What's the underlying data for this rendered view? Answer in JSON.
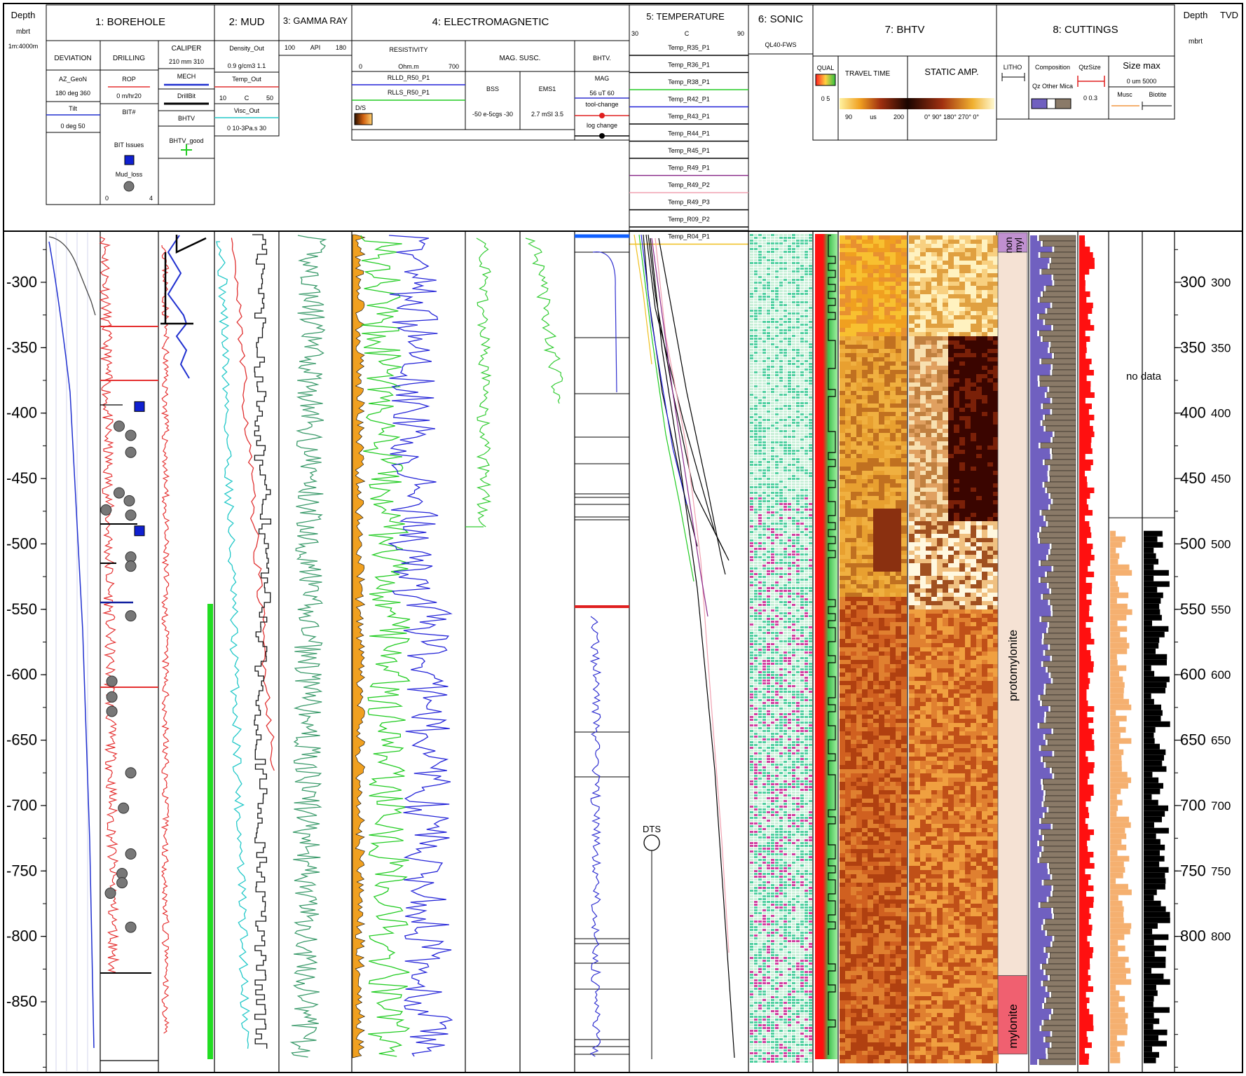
{
  "depth_header": {
    "title": "Depth",
    "unit": "mbrt",
    "scale": "1m:4000m"
  },
  "tvd_header": {
    "title": "Depth",
    "tvd": "TVD",
    "unit": "mbrt"
  },
  "tracks": {
    "borehole": {
      "title": "1: BOREHOLE",
      "deviation": {
        "title": "DEVIATION",
        "az_name": "AZ_GeoN",
        "az_scale": "180 deg 360",
        "tilt_name": "Tilt",
        "tilt_scale": "0 deg 50"
      },
      "drilling": {
        "title": "DRILLING",
        "rop_name": "ROP",
        "rop_scale": "0 m/hr20",
        "bit_name": "BIT#",
        "bit_issues": "BIT Issues",
        "mud_loss": "Mud_loss",
        "mud_scale_min": "0",
        "mud_scale_max": "4"
      },
      "caliper": {
        "title": "CALIPER",
        "scale": "210 mm 310",
        "mech": "MECH",
        "drillbit": "DrillBit",
        "bhtv": "BHTV",
        "bhtv_good": "BHTV_good"
      }
    },
    "mud": {
      "title": "2: MUD",
      "density": "Density_Out",
      "density_scale": "0.9 g/cm3 1.1",
      "temp": "Temp_Out",
      "temp_scale_min": "10",
      "temp_scale_unit": "C",
      "temp_scale_max": "50",
      "visc": "Visc_Out",
      "visc_scale": "0 10-3Pa.s 30"
    },
    "gamma": {
      "title": "3: GAMMA RAY",
      "min": "100",
      "unit": "API",
      "max": "180"
    },
    "em": {
      "title": "4: ELECTROMAGNETIC",
      "resistivity": "RESISTIVITY",
      "res_min": "0",
      "res_unit": "Ohm.m",
      "res_max": "700",
      "rlld": "RLLD_R50_P1",
      "rlls": "RLLS_R50_P1",
      "ds": "D/S",
      "magsusc": "MAG. SUSC.",
      "bss": "BSS",
      "bss_scale": "-50 e-5cgs -30",
      "ems1": "EMS1",
      "ems1_scale": "2.7 mSI 3.5",
      "bhtv": "BHTV.",
      "mag": "MAG",
      "mag_scale": "56 uT 60",
      "tool_change": "tool-change",
      "log_change": "log change"
    },
    "temperature": {
      "title": "5: TEMPERATURE",
      "min": "30",
      "unit": "C",
      "max": "90",
      "runs": [
        "Temp_R35_P1",
        "Temp_R36_P1",
        "Temp_R38_P1",
        "Temp_R42_P1",
        "Temp_R43_P1",
        "Temp_R44_P1",
        "Temp_R45_P1",
        "Temp_R49_P1",
        "Temp_R49_P2",
        "Temp_R49_P3",
        "Temp_R09_P2",
        "Temp_R04_P1"
      ],
      "dts": "DTS"
    },
    "sonic": {
      "title": "6: SONIC",
      "sub": "QL40-FWS"
    },
    "bhtv": {
      "title": "7: BHTV",
      "qual": "QUAL",
      "qual_scale": "0 5",
      "travel": "TRAVEL TIME",
      "travel_min": "90",
      "travel_unit": "us",
      "travel_max": "200",
      "static": "STATIC AMP.",
      "static_ticks": "0°  90°  180°  270°  0°"
    },
    "cuttings": {
      "title": "8: CUTTINGS",
      "litho": "LITHO",
      "composition": "Composition",
      "comp_sub": "Qz Other Mica",
      "qtzsize": "QtzSize",
      "qtz_scale": "0  0.3",
      "sizemax": "Size max",
      "size_scale": "0   um   5000",
      "musc": "Musc",
      "biotite": "Biotite",
      "no_data": "no data",
      "lith_top1": "non",
      "lith_top2": "myl",
      "lith_proto": "protomylonite",
      "lith_mylonite": "mylonite"
    }
  },
  "colors": {
    "rop": "#e53030",
    "tilt": "#2030d0",
    "deviation": "#444444",
    "gamma": "#3a9a6a",
    "rlld": "#2424d8",
    "rlls": "#22cc22",
    "ds": "#f0a020",
    "mag": "#3030d0",
    "temp_out": "#e03030",
    "visc": "#22c8c8",
    "density": "#111111",
    "qual": "#ff1010",
    "qz": "#7060c0",
    "mica": "#8a7a68",
    "musc": "#f5b070",
    "lith_proto": "#f5e2d4",
    "lith_mylonite": "#f06070",
    "lith_nonmyl": "#c090d0"
  },
  "chart_data": {
    "type": "well_log",
    "depth_ticks": [
      "-300",
      "-350",
      "-400",
      "-450",
      "-500",
      "-550",
      "-600",
      "-650",
      "-700",
      "-750",
      "-800",
      "-850"
    ],
    "depth_ylim": [
      -262,
      -903
    ],
    "tvd_ticks": [
      "300",
      "350",
      "400",
      "450",
      "500",
      "550",
      "600",
      "650",
      "700",
      "750",
      "800"
    ],
    "tvd_depths": [
      -300,
      -350,
      -400,
      -450,
      -500,
      -550,
      -600,
      -650,
      -700,
      -750,
      -800
    ],
    "bit_issue_depths": [
      -395,
      -490
    ],
    "mud_loss_points": [
      [
        1.3,
        -410
      ],
      [
        2.1,
        -417
      ],
      [
        2.1,
        -430
      ],
      [
        1.3,
        -461
      ],
      [
        0.4,
        -474
      ],
      [
        2.0,
        -467
      ],
      [
        2.1,
        -478
      ],
      [
        2.1,
        -510
      ],
      [
        2.1,
        -517
      ],
      [
        2.1,
        -555
      ],
      [
        0.8,
        -605
      ],
      [
        0.8,
        -617
      ],
      [
        0.8,
        -628
      ],
      [
        2.1,
        -675
      ],
      [
        1.6,
        -702
      ],
      [
        2.1,
        -737
      ],
      [
        1.5,
        -752
      ],
      [
        1.5,
        -759
      ],
      [
        0.7,
        -767
      ],
      [
        2.1,
        -793
      ]
    ],
    "lithology": [
      {
        "name": "non myl",
        "top": -262,
        "base": -277
      },
      {
        "name": "protomylonite",
        "top": -277,
        "base": -830
      },
      {
        "name": "mylonite",
        "top": -830,
        "base": -890
      }
    ],
    "dts_marker_depth": -726
  }
}
